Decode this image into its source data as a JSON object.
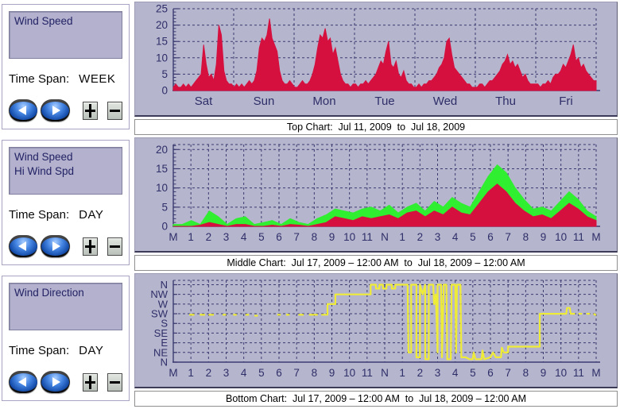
{
  "panels": [
    {
      "labels": [
        "Wind Speed"
      ],
      "time_span_label": "Time Span:",
      "time_span_value": "WEEK",
      "caption": "Top Chart:  Jul 11, 2009  to  Jul 18, 2009"
    },
    {
      "labels": [
        "Wind Speed",
        "Hi Wind Spd"
      ],
      "time_span_label": "Time Span:",
      "time_span_value": "DAY",
      "caption": "Middle Chart:  Jul 17, 2009 – 12:00 AM  to  Jul 18, 2009 – 12:00 AM"
    },
    {
      "labels": [
        "Wind Direction"
      ],
      "time_span_label": "Time Span:",
      "time_span_value": "DAY",
      "caption": "Bottom Chart:  Jul 17, 2009 – 12:00 AM  to  Jul 18, 2009 – 12:00 AM"
    }
  ],
  "colors": {
    "chart_bg": "#b6b5ce",
    "grid": "#3b3b70",
    "axis_label": "#2e2e68",
    "wind_speed_red": "#d5103f",
    "hi_wind_green": "#30ee30",
    "direction_yellow": "#efec38"
  },
  "chart_data": [
    {
      "type": "area",
      "title": "Wind Speed - Week of Jul 11-18, 2009",
      "x_label_mode": "center",
      "x_max": 7,
      "x_tick_labels": [
        "Sat",
        "Sun",
        "Mon",
        "Tue",
        "Wed",
        "Thu",
        "Fri"
      ],
      "y_ticks": [
        0,
        5,
        10,
        15,
        20,
        25
      ],
      "y_grid": [
        5,
        10,
        15,
        20,
        25
      ],
      "y_minor_step": 1,
      "ylim": [
        0,
        25
      ],
      "series": [
        {
          "name": "Wind Speed",
          "color": "#d5103f",
          "values": [
            1,
            2,
            1,
            1,
            2,
            1,
            2,
            1,
            2,
            3,
            4,
            5,
            14,
            8,
            4,
            5,
            3,
            8,
            20,
            17,
            6,
            3,
            2,
            2,
            1,
            2,
            1,
            2,
            1,
            2,
            3,
            2,
            3,
            6,
            13,
            16,
            15,
            17,
            22,
            16,
            14,
            12,
            6,
            3,
            2,
            2,
            3,
            2,
            1,
            1,
            2,
            3,
            2,
            2,
            3,
            5,
            8,
            13,
            17,
            16,
            19,
            15,
            16,
            11,
            13,
            9,
            5,
            3,
            2,
            2,
            1,
            2,
            2,
            1,
            2,
            2,
            3,
            2,
            3,
            4,
            5,
            7,
            9,
            8,
            12,
            15,
            8,
            7,
            9,
            5,
            4,
            6,
            3,
            2,
            2,
            1,
            1,
            2,
            1,
            2,
            2,
            3,
            3,
            4,
            5,
            7,
            8,
            10,
            15,
            16,
            11,
            7,
            6,
            5,
            4,
            3,
            2,
            2,
            1,
            1,
            1,
            2,
            2,
            1,
            2,
            3,
            3,
            4,
            5,
            6,
            8,
            9,
            11,
            8,
            9,
            7,
            8,
            6,
            4,
            5,
            3,
            2,
            2,
            2,
            2,
            1,
            2,
            2,
            3,
            2,
            4,
            5,
            5,
            6,
            8,
            7,
            9,
            11,
            14,
            9,
            10,
            7,
            8,
            6,
            5,
            4,
            3,
            3
          ]
        }
      ]
    },
    {
      "type": "area",
      "title": "Wind Speed / Hi Wind Spd - Jul 17, 2009",
      "x_label_mode": "edge",
      "x_max": 24,
      "x_tick_labels": [
        "M",
        "1",
        "2",
        "3",
        "4",
        "5",
        "6",
        "7",
        "8",
        "9",
        "10",
        "11",
        "N",
        "1",
        "2",
        "3",
        "4",
        "5",
        "6",
        "7",
        "8",
        "9",
        "10",
        "11",
        "M"
      ],
      "y_ticks": [
        0,
        5,
        10,
        15,
        20
      ],
      "y_grid": [
        5,
        10,
        15,
        20
      ],
      "y_minor_step": 1,
      "ylim": [
        0,
        21.3
      ],
      "series": [
        {
          "name": "Hi Wind Spd",
          "color": "#30ee30",
          "values": [
            0.5,
            0.5,
            1.5,
            0.5,
            4,
            2.5,
            0.5,
            2,
            2.5,
            0.5,
            1,
            1.5,
            0.5,
            2,
            1,
            0.5,
            2,
            3,
            4.5,
            4,
            3.5,
            4.5,
            5,
            4,
            5.5,
            3.5,
            5,
            6,
            4,
            6.5,
            5,
            7.5,
            6,
            5,
            9,
            13,
            16,
            14,
            10,
            7,
            4.5,
            5,
            4,
            6.5,
            9,
            7,
            4,
            2.5
          ]
        },
        {
          "name": "Wind Speed",
          "color": "#d5103f",
          "values": [
            0,
            0,
            0,
            0.3,
            1,
            0.5,
            0,
            0.5,
            0.5,
            0,
            0,
            0.3,
            0,
            0.5,
            0.3,
            0,
            0.5,
            1,
            2.5,
            2,
            1.5,
            2.5,
            2,
            2.5,
            3,
            2,
            3.5,
            4,
            2.5,
            4,
            3,
            5,
            3.5,
            3,
            6,
            9,
            11,
            9,
            6,
            4,
            2.5,
            3,
            2,
            4,
            6,
            4.5,
            2.5,
            1.5
          ]
        }
      ]
    },
    {
      "type": "line",
      "title": "Wind Direction - Jul 17, 2009",
      "x_label_mode": "edge",
      "x_max": 24,
      "x_tick_labels": [
        "M",
        "1",
        "2",
        "3",
        "4",
        "5",
        "6",
        "7",
        "8",
        "9",
        "10",
        "11",
        "N",
        "1",
        "2",
        "3",
        "4",
        "5",
        "6",
        "7",
        "8",
        "9",
        "10",
        "11",
        "M"
      ],
      "y_tick_labels": [
        "N",
        "NE",
        "E",
        "SE",
        "S",
        "SW",
        "W",
        "NW",
        "N"
      ],
      "y_grid": [
        1,
        2,
        3,
        4,
        5,
        6,
        7,
        8
      ],
      "ylim": [
        0,
        8.45
      ],
      "series": [
        {
          "name": "Wind Direction",
          "color": "#efec38",
          "points": [
            [
              0.9,
              4.9
            ],
            [
              1.2,
              4.9
            ],
            null,
            [
              1.5,
              4.9
            ],
            [
              1.8,
              4.9
            ],
            null,
            [
              2.0,
              4.9
            ],
            [
              2.3,
              4.9
            ],
            null,
            [
              2.8,
              4.9
            ],
            [
              3.0,
              4.9
            ],
            null,
            [
              3.4,
              4.9
            ],
            [
              3.6,
              4.9
            ],
            null,
            [
              4.1,
              4.9
            ],
            [
              4.3,
              4.9
            ],
            null,
            [
              4.6,
              4.8
            ],
            [
              4.8,
              4.8
            ],
            null,
            [
              5.9,
              4.9
            ],
            [
              6.1,
              4.9
            ],
            null,
            [
              6.4,
              4.9
            ],
            [
              6.6,
              4.9
            ],
            null,
            [
              7.1,
              4.9
            ],
            [
              7.4,
              4.9
            ],
            null,
            [
              7.7,
              4.9
            ],
            [
              8.0,
              4.9
            ],
            [
              8.2,
              4.9
            ],
            null,
            [
              8.4,
              4.9
            ],
            [
              8.75,
              4.9
            ],
            [
              8.75,
              6
            ],
            [
              9.2,
              6
            ],
            [
              9.2,
              7
            ],
            [
              11.2,
              7
            ],
            [
              11.2,
              8
            ],
            [
              11.5,
              8
            ],
            [
              11.5,
              7.6
            ],
            [
              11.7,
              7.6
            ],
            [
              11.7,
              8
            ],
            [
              11.9,
              8
            ],
            [
              11.9,
              7.6
            ],
            [
              12.1,
              7.6
            ],
            [
              12.1,
              8
            ],
            [
              12.4,
              8
            ],
            [
              12.4,
              7.6
            ],
            [
              12.6,
              7.6
            ],
            [
              12.6,
              8
            ],
            [
              13.3,
              8
            ],
            [
              13.35,
              1
            ],
            [
              13.5,
              1
            ],
            [
              13.5,
              8
            ],
            [
              13.8,
              8
            ],
            [
              13.8,
              0.5
            ],
            [
              14.0,
              0.5
            ],
            [
              14.0,
              8
            ],
            [
              14.15,
              7
            ],
            [
              14.3,
              8
            ],
            [
              14.3,
              0.3
            ],
            [
              14.5,
              0.3
            ],
            [
              14.5,
              8
            ],
            [
              14.75,
              8
            ],
            [
              14.8,
              6
            ],
            [
              14.9,
              7
            ],
            [
              15.0,
              1
            ],
            [
              15.0,
              8
            ],
            [
              15.2,
              8
            ],
            [
              15.25,
              0.5
            ],
            [
              15.35,
              8
            ],
            [
              15.5,
              8
            ],
            [
              15.55,
              0.3
            ],
            [
              15.75,
              0.3
            ],
            [
              15.8,
              8
            ],
            [
              16.0,
              8
            ],
            [
              16.05,
              1
            ],
            [
              16.1,
              8
            ],
            [
              16.3,
              8
            ],
            [
              16.35,
              0.5
            ],
            [
              16.6,
              0.5
            ],
            [
              16.8,
              0.3
            ],
            [
              17.0,
              0.3
            ],
            [
              17.05,
              1
            ],
            [
              17.15,
              0.3
            ],
            [
              17.5,
              0.3
            ],
            [
              17.55,
              1.2
            ],
            [
              17.65,
              0.3
            ],
            [
              18.0,
              0.5
            ],
            [
              18.15,
              1
            ],
            [
              18.3,
              0.5
            ],
            [
              18.6,
              0.5
            ],
            [
              18.65,
              1.5
            ],
            [
              18.75,
              1
            ],
            [
              19.0,
              1
            ],
            [
              19.0,
              1.6
            ],
            [
              19.9,
              1.6
            ],
            [
              20.8,
              1.6
            ],
            [
              20.8,
              5
            ],
            [
              22.3,
              5
            ],
            [
              22.35,
              5.6
            ],
            [
              22.5,
              5.6
            ],
            [
              22.55,
              5
            ],
            [
              22.8,
              5
            ],
            null,
            [
              23.0,
              5
            ],
            [
              23.2,
              5
            ],
            null,
            [
              23.45,
              5
            ],
            [
              23.65,
              5
            ],
            null,
            [
              23.85,
              5
            ],
            [
              24,
              4.85
            ]
          ]
        }
      ]
    }
  ]
}
